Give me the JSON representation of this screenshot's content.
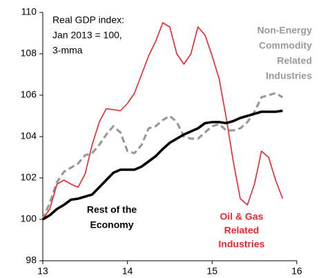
{
  "chart_data": {
    "type": "line",
    "annotation": [
      "Real GDP index:",
      "Jan 2013 = 100,",
      "3-mma"
    ],
    "x": [
      13.0,
      13.083,
      13.167,
      13.25,
      13.333,
      13.417,
      13.5,
      13.583,
      13.667,
      13.75,
      13.833,
      13.917,
      14.0,
      14.083,
      14.167,
      14.25,
      14.333,
      14.417,
      14.5,
      14.583,
      14.667,
      14.75,
      14.833,
      14.917,
      15.0,
      15.083,
      15.167,
      15.25,
      15.333,
      15.417,
      15.5,
      15.583,
      15.667,
      15.75,
      15.833
    ],
    "series": [
      {
        "name": [
          "Oil & Gas",
          "Related",
          "Industries"
        ],
        "color": "#e8262b",
        "width": 1.6,
        "dash": false,
        "values": [
          100.0,
          100.5,
          101.7,
          101.9,
          101.7,
          101.55,
          102.2,
          103.6,
          104.7,
          105.35,
          105.3,
          105.25,
          105.6,
          106.1,
          107.0,
          107.9,
          108.6,
          109.5,
          109.3,
          108.0,
          107.5,
          108.0,
          109.3,
          108.9,
          107.9,
          106.8,
          104.9,
          102.8,
          101.0,
          100.7,
          101.7,
          103.3,
          103.0,
          101.9,
          101.0
        ]
      },
      {
        "name": [
          "Non-Energy",
          "Commodity",
          "Related",
          "Industries"
        ],
        "color": "#999999",
        "width": 3.2,
        "dash": true,
        "values": [
          100.0,
          100.8,
          101.8,
          102.3,
          102.5,
          102.7,
          103.1,
          103.2,
          103.6,
          104.1,
          104.5,
          104.2,
          103.3,
          103.2,
          103.6,
          104.4,
          104.5,
          104.8,
          105.0,
          104.7,
          104.0,
          103.9,
          103.9,
          104.2,
          104.5,
          104.6,
          104.3,
          104.3,
          104.4,
          104.7,
          105.2,
          105.9,
          106.0,
          106.1,
          105.9
        ]
      },
      {
        "name": [
          "Rest of the",
          "Economy"
        ],
        "color": "#000000",
        "width": 3.6,
        "dash": false,
        "values": [
          100.0,
          100.2,
          100.5,
          100.7,
          100.95,
          101.0,
          101.1,
          101.2,
          101.55,
          101.9,
          102.25,
          102.4,
          102.4,
          102.4,
          102.55,
          102.8,
          103.05,
          103.4,
          103.7,
          103.9,
          104.1,
          104.25,
          104.4,
          104.65,
          104.7,
          104.7,
          104.65,
          104.75,
          104.9,
          105.0,
          105.1,
          105.2,
          105.2,
          105.2,
          105.25
        ]
      }
    ],
    "xlim": [
      13,
      16
    ],
    "xticks": [
      13,
      14,
      15,
      16
    ],
    "ylim": [
      98,
      110
    ],
    "yticks": [
      98,
      100,
      102,
      104,
      106,
      108,
      110
    ]
  }
}
